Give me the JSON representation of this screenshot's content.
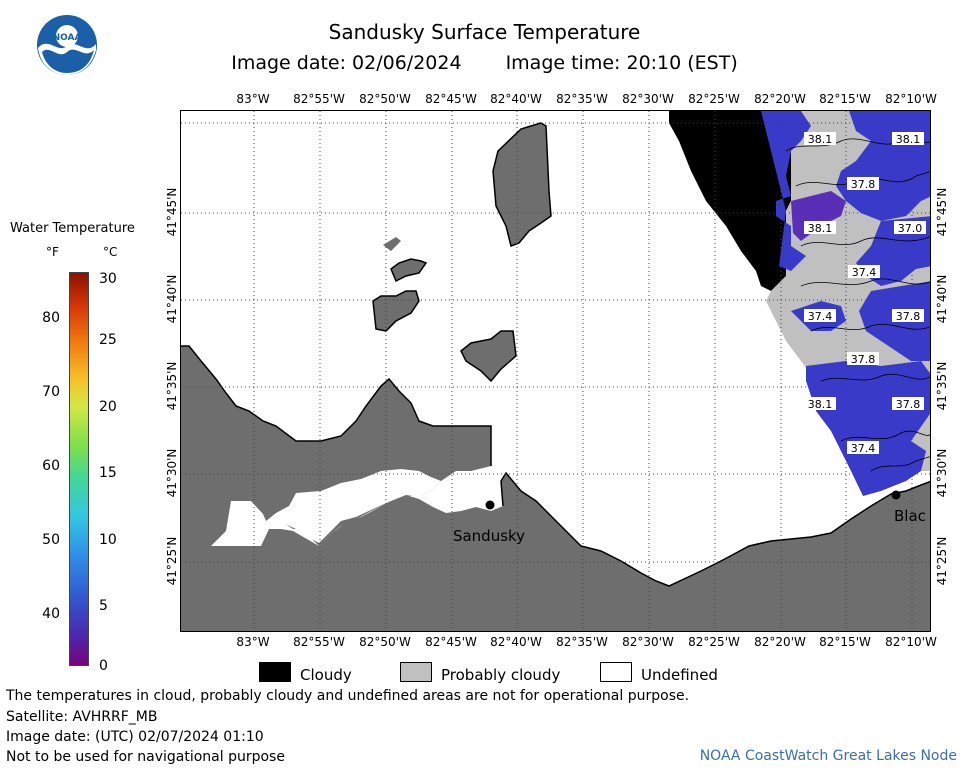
{
  "header": {
    "title": "Sandusky Surface Temperature",
    "image_date": "Image date: 02/06/2024",
    "image_time": "Image time: 20:10 (EST)",
    "logo_text": "NOAA"
  },
  "legend": {
    "title": "Water Temperature",
    "unit_f": "°F",
    "unit_c": "°C",
    "f_ticks": [
      "80",
      "70",
      "60",
      "50",
      "40"
    ],
    "c_ticks": [
      "30",
      "25",
      "20",
      "15",
      "10",
      "5",
      "0"
    ]
  },
  "map": {
    "lon_labels": [
      "83°W",
      "82°55'W",
      "82°50'W",
      "82°45'W",
      "82°40'W",
      "82°35'W",
      "82°30'W",
      "82°25'W",
      "82°20'W",
      "82°15'W",
      "82°10'W"
    ],
    "lat_labels": [
      "41°45'N",
      "41°40'N",
      "41°35'N",
      "41°30'N",
      "41°25'N"
    ],
    "places": {
      "sandusky": "Sandusky",
      "blac": "Blac"
    },
    "temperature_labels": [
      "38.1",
      "38.1",
      "37.8",
      "38.1",
      "37.0",
      "37.4",
      "37.4",
      "37.8",
      "37.8",
      "38.1",
      "37.8",
      "37.4"
    ],
    "colors": {
      "land": "#6e6e6e",
      "cloudy": "#000000",
      "probably_cloudy": "#c0c0c0",
      "water_cold": "#3a3ac8",
      "water_deep": "#5a2fb8"
    }
  },
  "cover_legend": {
    "cloudy": "Cloudy",
    "probably_cloudy": "Probably cloudy",
    "undefined": "Undefined"
  },
  "footer": {
    "disclaimer": "The temperatures in cloud, probably cloudy and undefined areas are not for operational purpose.",
    "satellite": "Satellite: AVHRRF_MB",
    "utc_date": "Image date: (UTC) 02/07/2024  01:10",
    "nav_warning": "Not to be used for navigational purpose",
    "credit": "NOAA CoastWatch Great Lakes Node"
  }
}
